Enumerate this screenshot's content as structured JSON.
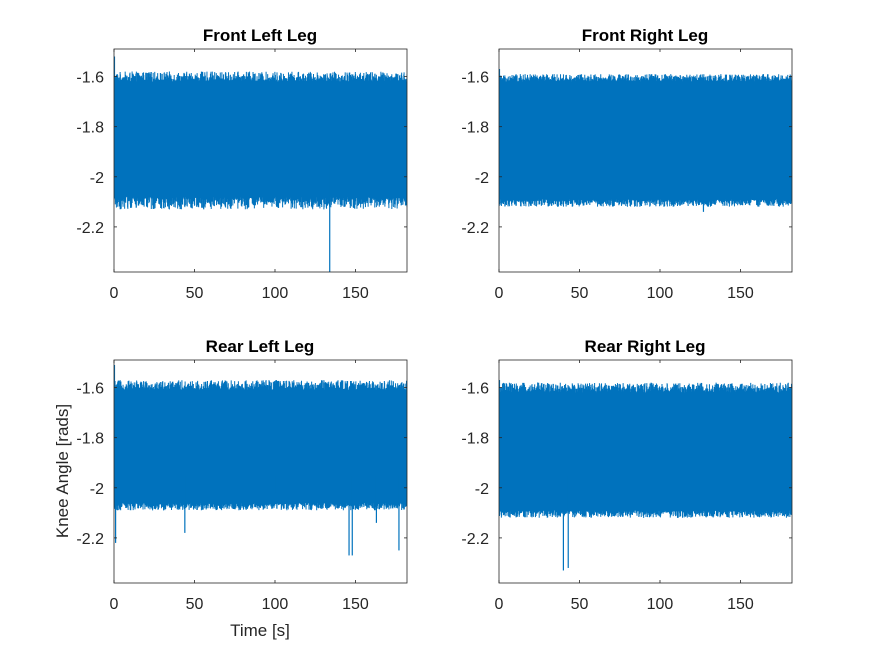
{
  "figure": {
    "background": "#ffffff",
    "line_color": "#0072bd",
    "axis_color": "#262626"
  },
  "chart_data": [
    {
      "type": "line",
      "title": "Front Left Leg",
      "xlabel": "",
      "ylabel": "",
      "xlim": [
        0,
        182
      ],
      "ylim": [
        -2.38,
        -1.49
      ],
      "xticks": [
        0,
        50,
        100,
        150
      ],
      "yticks": [
        -1.6,
        -1.8,
        -2,
        -2.2
      ],
      "ytick_labels": [
        "-1.6",
        "-1.8",
        "-2",
        "-2.2"
      ],
      "grid": false,
      "signal": {
        "upper_band": [
          -1.62,
          -1.58
        ],
        "lower_band": [
          -2.08,
          -2.13
        ]
      },
      "start_spike": -1.52,
      "spikes": [
        {
          "x": 134,
          "y": -2.38
        }
      ]
    },
    {
      "type": "line",
      "title": "Front Right Leg",
      "xlabel": "",
      "ylabel": "",
      "xlim": [
        0,
        182
      ],
      "ylim": [
        -2.38,
        -1.49
      ],
      "xticks": [
        0,
        50,
        100,
        150
      ],
      "yticks": [
        -1.6,
        -1.8,
        -2,
        -2.2
      ],
      "ytick_labels": [
        "-1.6",
        "-1.8",
        "-2",
        "-2.2"
      ],
      "grid": false,
      "signal": {
        "upper_band": [
          -1.62,
          -1.59
        ],
        "lower_band": [
          -2.09,
          -2.12
        ]
      },
      "start_spike": -1.57,
      "spikes": [
        {
          "x": 127,
          "y": -2.14
        }
      ]
    },
    {
      "type": "line",
      "title": "Rear Left Leg",
      "xlabel": "Time [s]",
      "ylabel": "Knee Angle [rads]",
      "xlim": [
        0,
        182
      ],
      "ylim": [
        -2.38,
        -1.49
      ],
      "xticks": [
        0,
        50,
        100,
        150
      ],
      "yticks": [
        -1.6,
        -1.8,
        -2,
        -2.2
      ],
      "ytick_labels": [
        "-1.6",
        "-1.8",
        "-2",
        "-2.2"
      ],
      "grid": false,
      "signal": {
        "upper_band": [
          -1.61,
          -1.57
        ],
        "lower_band": [
          -2.06,
          -2.09
        ]
      },
      "start_spike": -1.51,
      "spikes": [
        {
          "x": 1,
          "y": -2.22
        },
        {
          "x": 44,
          "y": -2.18
        },
        {
          "x": 75,
          "y": -2.04
        },
        {
          "x": 100,
          "y": -2.02
        },
        {
          "x": 146,
          "y": -2.27
        },
        {
          "x": 148,
          "y": -2.27
        },
        {
          "x": 163,
          "y": -2.14
        },
        {
          "x": 177,
          "y": -2.25
        }
      ]
    },
    {
      "type": "line",
      "title": "Rear Right Leg",
      "xlabel": "",
      "ylabel": "",
      "xlim": [
        0,
        182
      ],
      "ylim": [
        -2.38,
        -1.49
      ],
      "xticks": [
        0,
        50,
        100,
        150
      ],
      "yticks": [
        -1.6,
        -1.8,
        -2,
        -2.2
      ],
      "ytick_labels": [
        "-1.6",
        "-1.8",
        "-2",
        "-2.2"
      ],
      "grid": false,
      "signal": {
        "upper_band": [
          -1.62,
          -1.58
        ],
        "lower_band": [
          -2.09,
          -2.12
        ]
      },
      "start_spike": -1.57,
      "spikes": [
        {
          "x": 40,
          "y": -2.33
        },
        {
          "x": 43,
          "y": -2.32
        }
      ]
    }
  ]
}
